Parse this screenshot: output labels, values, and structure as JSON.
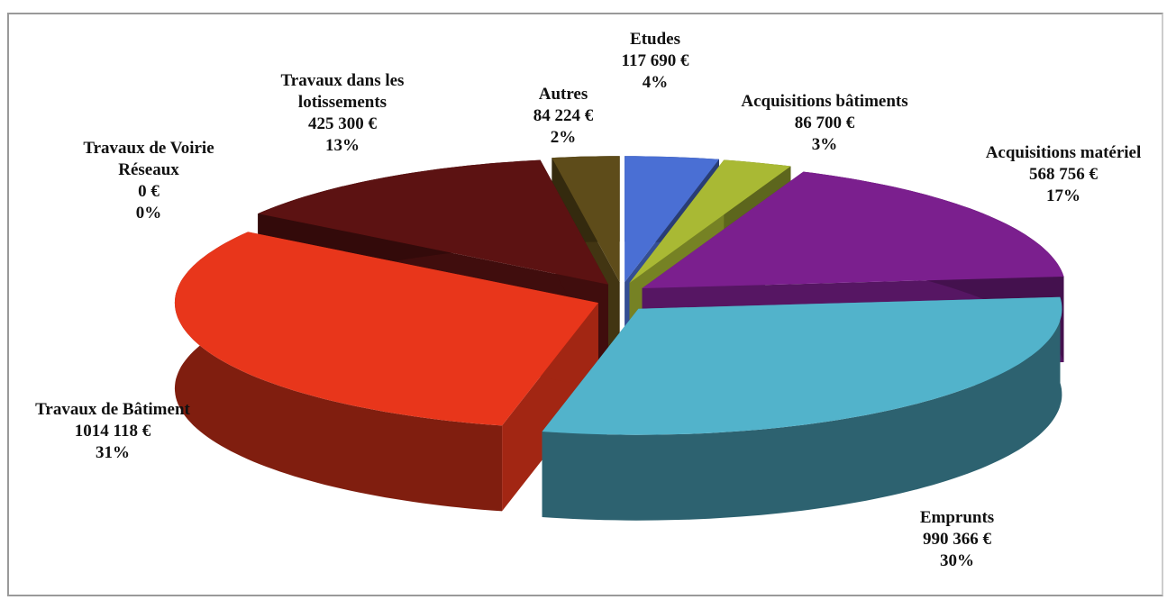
{
  "chart_data": {
    "type": "pie3d",
    "categories": [
      "Etudes",
      "Acquisitions bâtiments",
      "Acquisitions matériel",
      "Emprunts",
      "Travaux de Bâtiment",
      "Travaux de Voirie Réseaux",
      "Travaux dans les lotissements",
      "Autres"
    ],
    "values": [
      117690,
      86700,
      568756,
      990366,
      1014118,
      0,
      425300,
      84224
    ],
    "value_labels": [
      "117 690 €",
      "86 700 €",
      "568 756 €",
      "990 366 €",
      "1014 118 €",
      "0 €",
      "425 300 €",
      "84 224 €"
    ],
    "percent_labels": [
      "4%",
      "3%",
      "17%",
      "30%",
      "31%",
      "0%",
      "13%",
      "2%"
    ],
    "colors": [
      "#4a6fd4",
      "#a9b934",
      "#7b1f8e",
      "#52b3cb",
      "#e8361b",
      "#1c2a4a",
      "#5c1212",
      "#5e4c1a"
    ]
  }
}
